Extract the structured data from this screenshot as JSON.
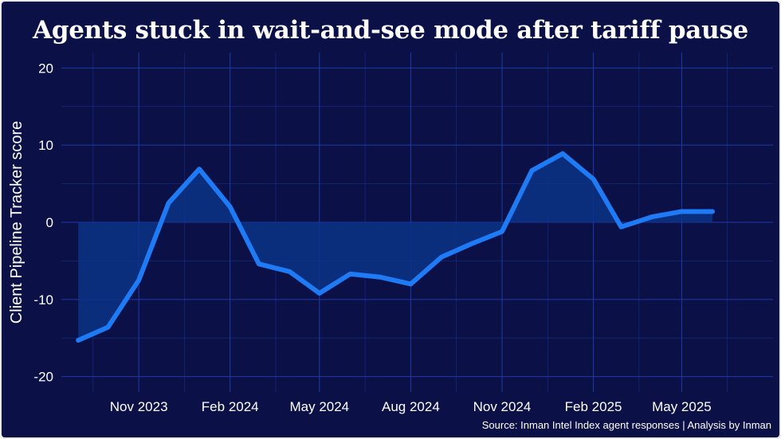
{
  "chart_data": {
    "type": "area",
    "title": "Agents stuck in wait-and-see mode after tariff pause",
    "ylabel": "Client Pipeline Tracker score",
    "xlabel": "",
    "ylim": [
      -22,
      22
    ],
    "xlim": [
      "2023-08-15",
      "2025-08-01"
    ],
    "y_ticks": [
      -20,
      -10,
      0,
      10,
      20
    ],
    "x_ticks": [
      {
        "label": "Nov 2023",
        "date": "2023-11-01"
      },
      {
        "label": "Feb 2024",
        "date": "2024-02-01"
      },
      {
        "label": "May 2024",
        "date": "2024-05-01"
      },
      {
        "label": "Aug 2024",
        "date": "2024-08-01"
      },
      {
        "label": "Nov 2024",
        "date": "2024-11-01"
      },
      {
        "label": "Feb 2025",
        "date": "2025-02-01"
      },
      {
        "label": "May 2025",
        "date": "2025-05-01"
      }
    ],
    "grid": true,
    "series": [
      {
        "x": [
          "2023-09-01",
          "2023-10-01",
          "2023-11-01",
          "2023-12-01",
          "2024-01-01",
          "2024-02-01",
          "2024-03-01",
          "2024-04-01",
          "2024-05-01",
          "2024-06-01",
          "2024-07-01",
          "2024-08-01",
          "2024-09-01",
          "2024-10-01",
          "2024-11-01",
          "2024-12-01",
          "2025-01-01",
          "2025-02-01",
          "2025-03-01",
          "2025-04-01",
          "2025-05-01",
          "2025-06-01"
        ],
        "values": [
          -15.3,
          -13.6,
          -7.5,
          2.5,
          6.9,
          2.0,
          -5.4,
          -6.4,
          -9.2,
          -6.7,
          -7.1,
          -8.0,
          -4.5,
          -2.8,
          -1.2,
          6.7,
          8.9,
          5.6,
          -0.6,
          0.7,
          1.4,
          1.4
        ]
      }
    ],
    "colors": {
      "background": "#0b1147",
      "line": "#1f7bf5",
      "fill": "#0a3386",
      "grid": "#1e3aa8"
    },
    "source": "Source: Inman Intel Index agent responses | Analysis by Inman"
  }
}
